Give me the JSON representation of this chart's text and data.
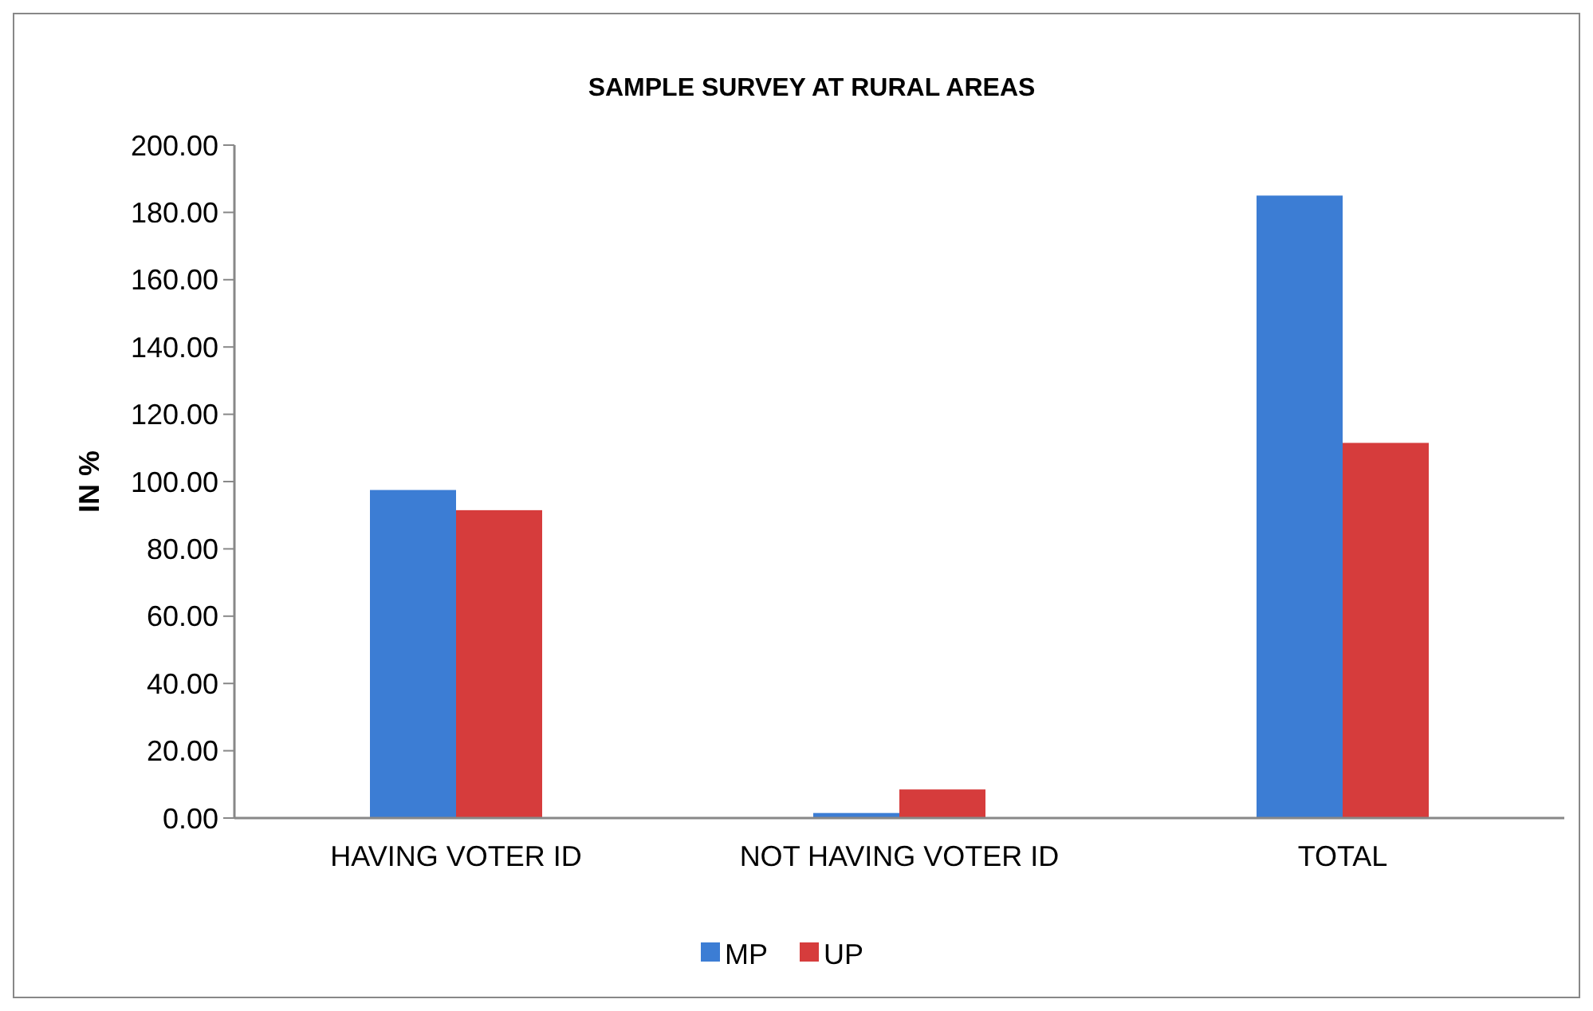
{
  "chart_data": {
    "type": "bar",
    "title": "SAMPLE SURVEY AT RURAL AREAS",
    "ylabel": "IN %",
    "categories": [
      "HAVING VOTER ID",
      "NOT HAVING VOTER ID",
      "TOTAL"
    ],
    "series": [
      {
        "name": "MP",
        "color": "#3c7dd4",
        "values": [
          97.5,
          1.5,
          185
        ]
      },
      {
        "name": "UP",
        "color": "#d63c3c",
        "values": [
          91.5,
          8.5,
          111.5
        ]
      }
    ],
    "ylim": [
      0,
      200
    ],
    "yticks": [
      {
        "value": 0,
        "label": "0.00"
      },
      {
        "value": 20,
        "label": "20.00"
      },
      {
        "value": 40,
        "label": "40.00"
      },
      {
        "value": 60,
        "label": "60.00"
      },
      {
        "value": 80,
        "label": "80.00"
      },
      {
        "value": 100,
        "label": "100.00"
      },
      {
        "value": 120,
        "label": "120.00"
      },
      {
        "value": 140,
        "label": "140.00"
      },
      {
        "value": 160,
        "label": "160.00"
      },
      {
        "value": 180,
        "label": "180.00"
      },
      {
        "value": 200,
        "label": "200.00"
      }
    ],
    "legend": "bottom",
    "grid": false
  }
}
